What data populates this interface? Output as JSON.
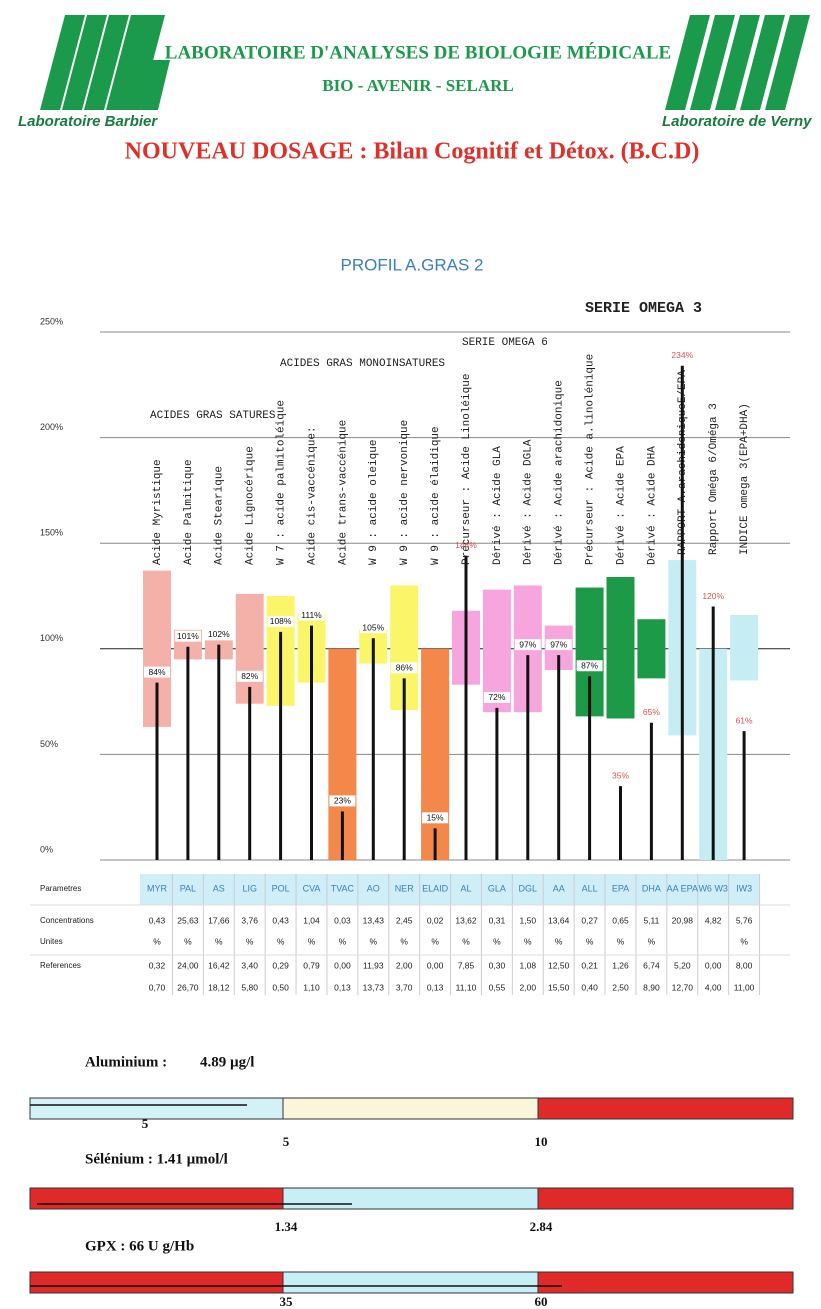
{
  "header": {
    "left_logo": "Laboratoire Barbier",
    "right_logo": "Laboratoire de Verny",
    "line1": "LABORATOIRE D'ANALYSES DE BIOLOGIE MÉDICALE",
    "line2": "BIO - AVENIR - SELARL",
    "title": "NOUVEAU DOSAGE : Bilan Cognitif et Détox. (B.C.D)"
  },
  "chart_data": {
    "type": "range_bar",
    "title": "PROFIL A.GRAS 2",
    "groups": [
      "ACIDES GRAS SATURES",
      "ACIDES GRAS MONOINSATURES",
      "SERIE OMEGA 6",
      "SERIE OMEGA 3"
    ],
    "categories": [
      "MYR",
      "PAL",
      "AS",
      "LIG",
      "POL",
      "CVA",
      "TVAC",
      "AO",
      "NER",
      "ELAID",
      "AL",
      "GLA",
      "DGL",
      "AA",
      "ALL",
      "EPA",
      "DHA",
      "AA EPA",
      "W6 W3",
      "IW3"
    ],
    "names": [
      "Acide Myristique",
      "Acide Palmitique",
      "Acide Stearique",
      "Acide Lignocérique",
      "W 7 : acide palmitoléique",
      "Acide cis-vaccénique:",
      "Acide trans-vaccénique",
      "W 9 : acide oleique",
      "W 9 : acide nervonique",
      "W 9 : acide élaidique",
      "Précurseur : Acide Linoléique",
      "Dérivé   : Acide GLA",
      "Dérivé   : Acide DGLA",
      "Dérivé   : Acide arachidonique",
      "Précurseur : Acide a.linolénique",
      "Dérivé   : Acide EPA",
      "Dérivé   : Acide DHA",
      "RAPPORT A.arachidoniqueE/EPA",
      "Rapport Oméga 6/Oméga 3",
      "INDICE omega 3(EPA+DHA)"
    ],
    "values": [
      84,
      101,
      102,
      82,
      108,
      111,
      23,
      105,
      86,
      15,
      144,
      72,
      97,
      97,
      87,
      35,
      65,
      234,
      120,
      61
    ],
    "value_labels": [
      "84%",
      "101%",
      "102%",
      "82%",
      "108%",
      "111%",
      "23%",
      "105%",
      "86%",
      "15%",
      "144%",
      "72%",
      "97%",
      "97%",
      "87%",
      "35%",
      "65%",
      "234%",
      "120%",
      "61%"
    ],
    "ranges": [
      [
        63,
        137
      ],
      [
        95,
        109
      ],
      [
        95,
        104
      ],
      [
        74,
        126
      ],
      [
        73,
        125
      ],
      [
        84,
        117
      ],
      [
        0,
        100
      ],
      [
        93,
        109
      ],
      [
        71,
        130
      ],
      [
        0,
        100
      ],
      [
        83,
        118
      ],
      [
        70,
        128
      ],
      [
        70,
        130
      ],
      [
        90,
        111
      ],
      [
        68,
        129
      ],
      [
        67,
        134
      ],
      [
        86,
        114
      ],
      [
        59,
        142
      ],
      [
        0,
        100
      ],
      [
        85,
        116
      ]
    ],
    "colors": [
      "#f4b1a9",
      "#f4b1a9",
      "#f4b1a9",
      "#f4b1a9",
      "#fbf56a",
      "#fbf56a",
      "#f4874a",
      "#fbf56a",
      "#fbf56a",
      "#f4874a",
      "#f6a6dc",
      "#f6a6dc",
      "#f6a6dc",
      "#f6a6dc",
      "#1d9a48",
      "#1d9a48",
      "#1d9a48",
      "#c6ecf4",
      "#c6ecf4",
      "#c6ecf4"
    ],
    "ylim": [
      0,
      250
    ],
    "yticks": [
      {
        "value": 0,
        "label": "0%"
      },
      {
        "value": 50,
        "label": "50%"
      },
      {
        "value": 100,
        "label": "100%"
      },
      {
        "value": 150,
        "label": "150%"
      },
      {
        "value": 200,
        "label": "200%"
      },
      {
        "value": 250,
        "label": "250%"
      }
    ]
  },
  "table": {
    "row_labels": [
      "Parametres",
      "Concentrations",
      "Unites",
      "References"
    ],
    "concentrations": [
      "0,43",
      "25,63",
      "17,66",
      "3,76",
      "0,43",
      "1,04",
      "0,03",
      "13,43",
      "2,45",
      "0,02",
      "13,62",
      "0,31",
      "1,50",
      "13,64",
      "0,27",
      "0,65",
      "5,11",
      "20,98",
      "4,82",
      "5,76"
    ],
    "units": [
      "%",
      "%",
      "%",
      "%",
      "%",
      "%",
      "%",
      "%",
      "%",
      "%",
      "%",
      "%",
      "%",
      "%",
      "%",
      "%",
      "%",
      null,
      null,
      "%"
    ],
    "ref_low": [
      "0,32",
      "24,00",
      "16,42",
      "3,40",
      "0,29",
      "0,79",
      "0,00",
      "11,93",
      "2,00",
      "0,00",
      "7,85",
      "0,30",
      "1,08",
      "12,50",
      "0,21",
      "1,26",
      "6,74",
      "5,20",
      "0,00",
      "8,00"
    ],
    "ref_high": [
      "0,70",
      "26,70",
      "18,12",
      "5,80",
      "0,50",
      "1,10",
      "0,13",
      "13,73",
      "3,70",
      "0,13",
      "11,10",
      "0,55",
      "2,00",
      "15,50",
      "0,40",
      "2,50",
      "8,90",
      "12,70",
      "4,00",
      "11,00"
    ]
  },
  "gauges": [
    {
      "label": "Aluminium :",
      "result": "4.89 µg/l",
      "marker": "5",
      "thresholds": [
        "5",
        "10"
      ]
    },
    {
      "label": "Sélénium : 1.41 µmol/l",
      "thresholds": [
        "1.34",
        "2.84"
      ]
    },
    {
      "label": "GPX :  66  U g/Hb",
      "thresholds": [
        "35",
        "60"
      ]
    }
  ]
}
